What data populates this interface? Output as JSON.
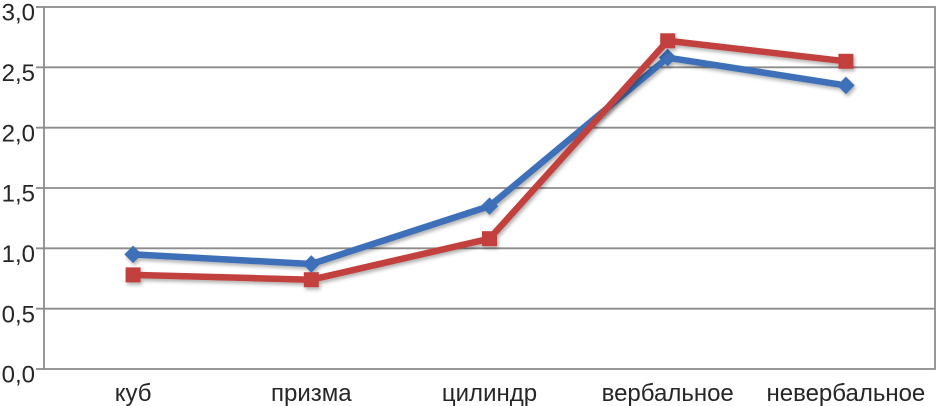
{
  "chart_data": {
    "type": "line",
    "title": "",
    "xlabel": "",
    "ylabel": "",
    "categories": [
      "куб",
      "призма",
      "цилиндр",
      "вербальное",
      "невербальное"
    ],
    "series": [
      {
        "name": "series-blue-diamond",
        "marker": "diamond",
        "color": "#3E6FB8",
        "values": [
          0.95,
          0.87,
          1.35,
          2.58,
          2.35
        ]
      },
      {
        "name": "series-red-square",
        "marker": "square",
        "color": "#C2413C",
        "values": [
          0.78,
          0.74,
          1.08,
          2.72,
          2.55
        ]
      }
    ],
    "ylim": [
      0,
      3
    ],
    "ytick_step": 0.5,
    "ytick_labels": [
      "0,0",
      "0,5",
      "1,0",
      "1,5",
      "2,0",
      "2,5",
      "3,0"
    ],
    "grid": true,
    "legend": "none",
    "gridline_color": "#8C8C8C",
    "border_color": "#8C8C8C",
    "tick_label_color": "#262626"
  }
}
